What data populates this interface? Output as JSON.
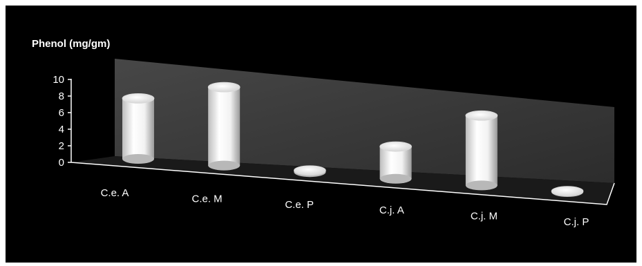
{
  "chart_data": {
    "type": "bar",
    "style": "3d-cylinder",
    "ylabel": "Phenol (mg/gm)",
    "categories": [
      "C.e. A",
      "C.e. M",
      "C.e. P",
      "C.j. A",
      "C.j. M",
      "C.j. P"
    ],
    "values": [
      7.3,
      9.3,
      0.2,
      3.7,
      7.9,
      0.1
    ],
    "ylim": [
      0,
      10
    ],
    "yticks": [
      0,
      2,
      4,
      6,
      8,
      10
    ],
    "grid": false,
    "legend": "none",
    "colors": {
      "background": "#000000",
      "wall": "#3a3a3a",
      "bar": "#ffffff",
      "text": "#ffffff"
    }
  }
}
